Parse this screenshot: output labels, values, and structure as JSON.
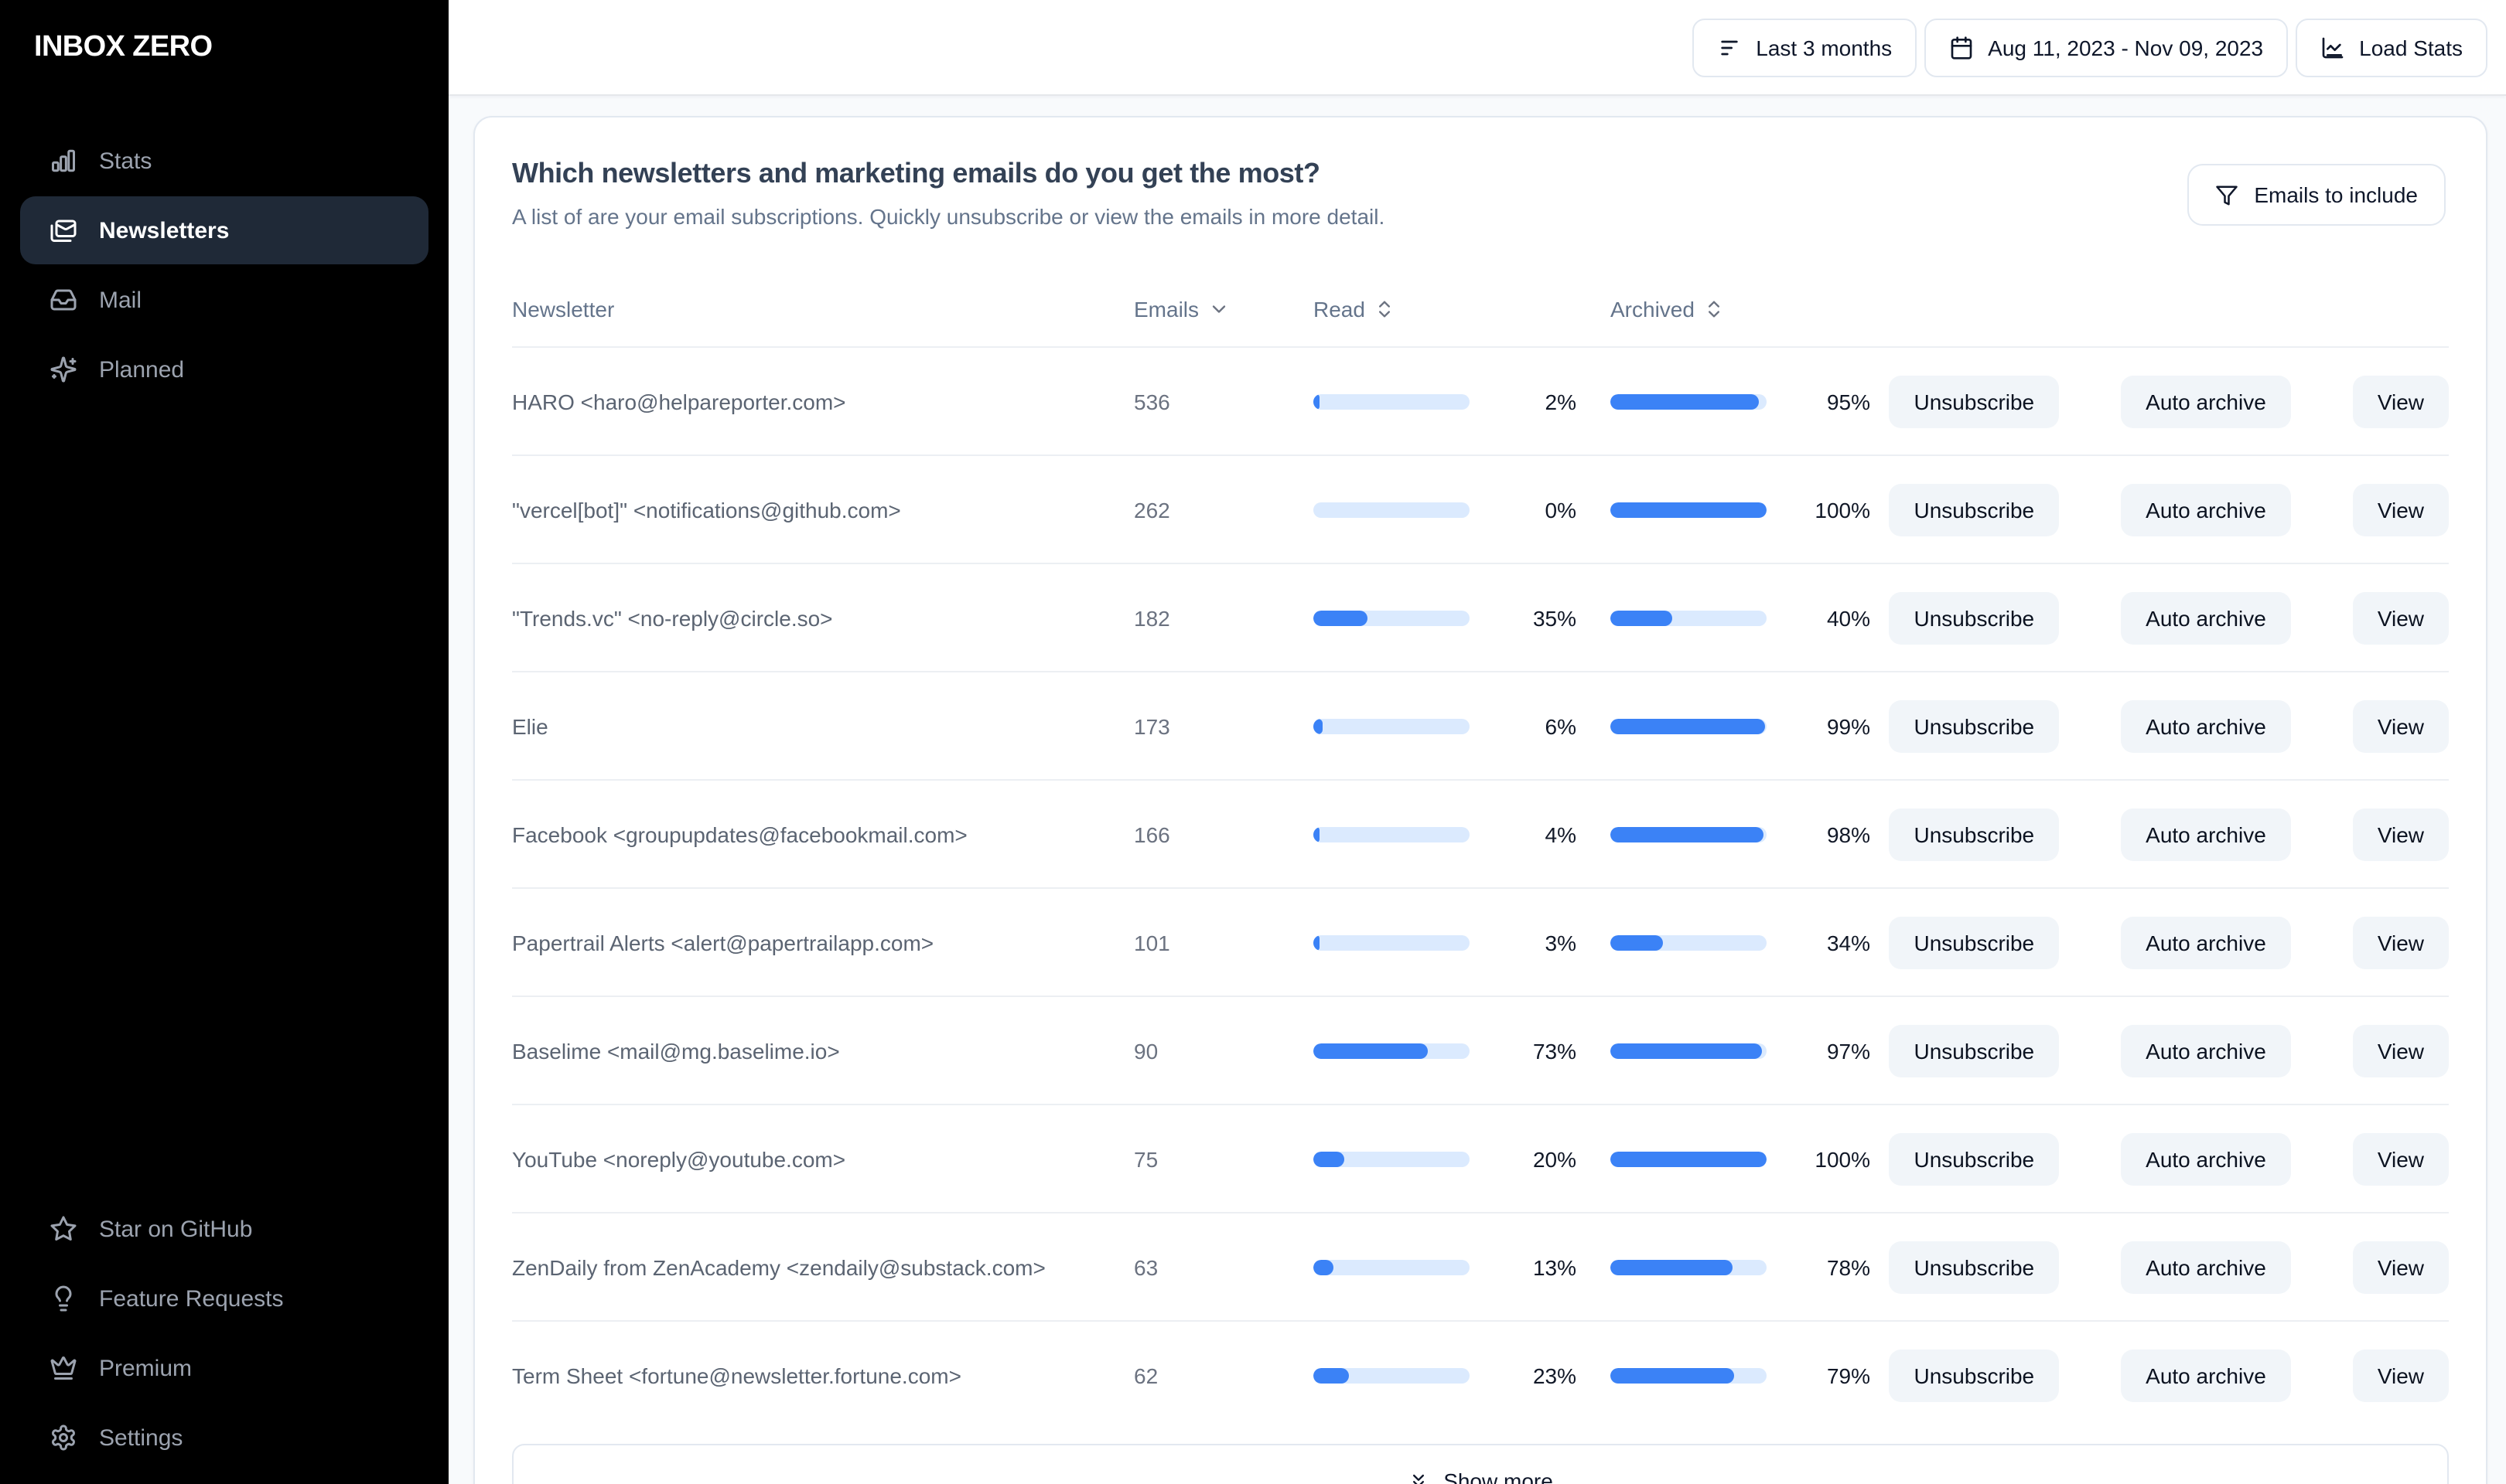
{
  "app": {
    "logo": "INBOX ZERO"
  },
  "sidebar": {
    "items": [
      {
        "label": "Stats",
        "icon": "bar-chart-icon",
        "selected": false
      },
      {
        "label": "Newsletters",
        "icon": "mails-icon",
        "selected": true
      },
      {
        "label": "Mail",
        "icon": "inbox-icon",
        "selected": false
      },
      {
        "label": "Planned",
        "icon": "sparkles-icon",
        "selected": false
      }
    ],
    "footer_items": [
      {
        "label": "Star on GitHub",
        "icon": "star-icon"
      },
      {
        "label": "Feature Requests",
        "icon": "lightbulb-icon"
      },
      {
        "label": "Premium",
        "icon": "crown-icon"
      },
      {
        "label": "Settings",
        "icon": "gear-icon"
      }
    ]
  },
  "topbar": {
    "period_button": "Last 3 months",
    "date_range_button": "Aug 11, 2023 - Nov 09, 2023",
    "load_stats_button": "Load Stats"
  },
  "newsletters_panel": {
    "title": "Which newsletters and marketing emails do you get the most?",
    "subtitle": "A list of are your email subscriptions. Quickly unsubscribe or view the emails in more detail.",
    "filter_button": "Emails to include",
    "show_more_button": "Show more",
    "columns": {
      "newsletter": "Newsletter",
      "emails": "Emails",
      "read": "Read",
      "archived": "Archived"
    },
    "actions": {
      "unsubscribe": "Unsubscribe",
      "auto_archive": "Auto archive",
      "view": "View"
    },
    "rows": [
      {
        "name": "HARO <haro@helpareporter.com>",
        "emails": "536",
        "read_pct": 2,
        "read_label": "2%",
        "archived_pct": 95,
        "archived_label": "95%"
      },
      {
        "name": "\"vercel[bot]\" <notifications@github.com>",
        "emails": "262",
        "read_pct": 0,
        "read_label": "0%",
        "archived_pct": 100,
        "archived_label": "100%"
      },
      {
        "name": "\"Trends.vc\" <no-reply@circle.so>",
        "emails": "182",
        "read_pct": 35,
        "read_label": "35%",
        "archived_pct": 40,
        "archived_label": "40%"
      },
      {
        "name": "Elie",
        "emails": "173",
        "read_pct": 6,
        "read_label": "6%",
        "archived_pct": 99,
        "archived_label": "99%"
      },
      {
        "name": "Facebook <groupupdates@facebookmail.com>",
        "emails": "166",
        "read_pct": 4,
        "read_label": "4%",
        "archived_pct": 98,
        "archived_label": "98%"
      },
      {
        "name": "Papertrail Alerts <alert@papertrailapp.com>",
        "emails": "101",
        "read_pct": 3,
        "read_label": "3%",
        "archived_pct": 34,
        "archived_label": "34%"
      },
      {
        "name": "Baselime <mail@mg.baselime.io>",
        "emails": "90",
        "read_pct": 73,
        "read_label": "73%",
        "archived_pct": 97,
        "archived_label": "97%"
      },
      {
        "name": "YouTube <noreply@youtube.com>",
        "emails": "75",
        "read_pct": 20,
        "read_label": "20%",
        "archived_pct": 100,
        "archived_label": "100%"
      },
      {
        "name": "ZenDaily from ZenAcademy <zendaily@substack.com>",
        "emails": "63",
        "read_pct": 13,
        "read_label": "13%",
        "archived_pct": 78,
        "archived_label": "78%"
      },
      {
        "name": "Term Sheet <fortune@newsletter.fortune.com>",
        "emails": "62",
        "read_pct": 23,
        "read_label": "23%",
        "archived_pct": 79,
        "archived_label": "79%"
      }
    ]
  },
  "colors": {
    "sidebar_bg": "#000000",
    "selected_item_bg": "#1f2937",
    "accent_blue": "#3b82f6",
    "bar_track": "#dbeafe"
  }
}
